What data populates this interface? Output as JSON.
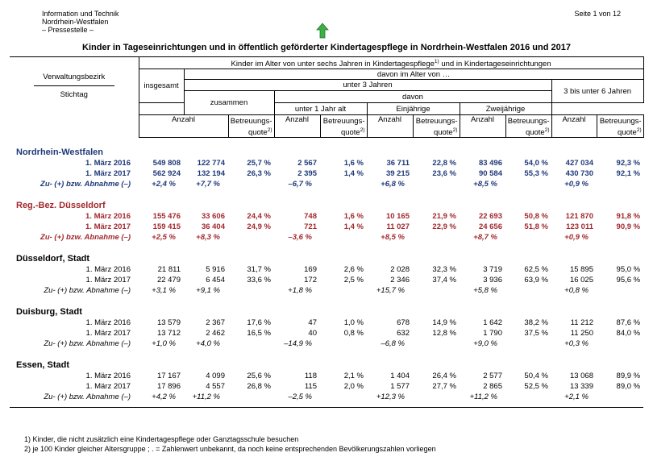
{
  "header": {
    "org": [
      "Information und Technik",
      "Nordrhein-Westfalen",
      "– Pressestelle –"
    ],
    "page": "Seite 1 von 12",
    "title": "Kinder in Tageseinrichtungen und in öffentlich geförderter Kindertagespflege in Nordrhein-Westfalen 2016 und 2017"
  },
  "table": {
    "head": {
      "top": [
        "Kinder im Alter von unter sechs Jahren in Kindertagespflege",
        "1)",
        " und in Kindertageseinrichtungen"
      ],
      "davon_alter": "davon im Alter von …",
      "verwaltungsbezirk": "Verwaltungsbezirk",
      "stichtag": "Stichtag",
      "insgesamt": "insgesamt",
      "unter3": "unter 3 Jahren",
      "drei_bis_sechs": "3 bis unter 6 Jahren",
      "zusammen": "zusammen",
      "davon": "davon",
      "unter1": "unter 1 Jahr alt",
      "einjaehrige": "Einjährige",
      "zweijaehrige": "Zweijährige",
      "anzahl": "Anzahl",
      "quote": {
        "line1": "Betreuungs-",
        "line2": "quote",
        "sup": "2)"
      }
    },
    "sections": [
      {
        "name": "Nordrhein-Westfalen",
        "rows": [
          [
            "1. März 2016",
            "549 808",
            "122 774",
            "25,7 %",
            "2 567",
            "1,6 %",
            "36 711",
            "22,8 %",
            "83 496",
            "54,0 %",
            "427 034",
            "92,3 %"
          ],
          [
            "1. März 2017",
            "562 924",
            "132 194",
            "26,3 %",
            "2 395",
            "1,4 %",
            "39 215",
            "23,6 %",
            "90 584",
            "55,3 %",
            "430 730",
            "92,1 %"
          ],
          [
            "Zu- (+) bzw. Abnahme (–)",
            "+2,4 %",
            "+7,7 %",
            null,
            "–6,7 %",
            null,
            "+6,8 %",
            null,
            "+8,5 %",
            null,
            "+0,9 %",
            null
          ]
        ]
      },
      {
        "name": "Reg.-Bez. Düsseldorf",
        "rows": [
          [
            "1. März 2016",
            "155 476",
            "33 606",
            "24,4 %",
            "748",
            "1,6 %",
            "10 165",
            "21,9 %",
            "22 693",
            "50,8 %",
            "121 870",
            "91,8 %"
          ],
          [
            "1. März 2017",
            "159 415",
            "36 404",
            "24,9 %",
            "721",
            "1,4 %",
            "11 027",
            "22,9 %",
            "24 656",
            "51,8 %",
            "123 011",
            "90,9 %"
          ],
          [
            "Zu- (+) bzw. Abnahme (–)",
            "+2,5 %",
            "+8,3 %",
            null,
            "–3,6 %",
            null,
            "+8,5 %",
            null,
            "+8,7 %",
            null,
            "+0,9 %",
            null
          ]
        ]
      },
      {
        "name": "Düsseldorf, Stadt",
        "rows": [
          [
            "1. März 2016",
            "21 811",
            "5 916",
            "31,7 %",
            "169",
            "2,6 %",
            "2 028",
            "32,3 %",
            "3 719",
            "62,5 %",
            "15 895",
            "95,0 %"
          ],
          [
            "1. März 2017",
            "22 479",
            "6 454",
            "33,6 %",
            "172",
            "2,5 %",
            "2 346",
            "37,4 %",
            "3 936",
            "63,9 %",
            "16 025",
            "95,6 %"
          ],
          [
            "Zu- (+) bzw. Abnahme (–)",
            "+3,1 %",
            "+9,1 %",
            null,
            "+1,8 %",
            null,
            "+15,7 %",
            null,
            "+5,8 %",
            null,
            "+0,8 %",
            null
          ]
        ]
      },
      {
        "name": "Duisburg, Stadt",
        "rows": [
          [
            "1. März 2016",
            "13 579",
            "2 367",
            "17,6 %",
            "47",
            "1,0 %",
            "678",
            "14,9 %",
            "1 642",
            "38,2 %",
            "11 212",
            "87,6 %"
          ],
          [
            "1. März 2017",
            "13 712",
            "2 462",
            "16,5 %",
            "40",
            "0,8 %",
            "632",
            "12,8 %",
            "1 790",
            "37,5 %",
            "11 250",
            "84,0 %"
          ],
          [
            "Zu- (+) bzw. Abnahme (–)",
            "+1,0 %",
            "+4,0 %",
            null,
            "–14,9 %",
            null,
            "–6,8 %",
            null,
            "+9,0 %",
            null,
            "+0,3 %",
            null
          ]
        ]
      },
      {
        "name": "Essen, Stadt",
        "rows": [
          [
            "1. März 2016",
            "17 167",
            "4 099",
            "25,6 %",
            "118",
            "2,1 %",
            "1 404",
            "26,4 %",
            "2 577",
            "50,4 %",
            "13 068",
            "89,9 %"
          ],
          [
            "1. März 2017",
            "17 896",
            "4 557",
            "26,8 %",
            "115",
            "2,0 %",
            "1 577",
            "27,7 %",
            "2 865",
            "52,5 %",
            "13 339",
            "89,0 %"
          ],
          [
            "Zu- (+) bzw. Abnahme (–)",
            "+4,2 %",
            "+11,2 %",
            null,
            "–2,5 %",
            null,
            "+12,3 %",
            null,
            "+11,2 %",
            null,
            "+2,1 %",
            null
          ]
        ]
      }
    ]
  },
  "footnotes": [
    "1) Kinder, die nicht zusätzlich eine Kindertagespflege oder Ganztagsschule besuchen",
    "2) je 100 Kinder gleicher Altersgruppe ; . = Zahlenwert unbekannt, da noch keine entsprechenden Bevölkerungszahlen vorliegen"
  ]
}
